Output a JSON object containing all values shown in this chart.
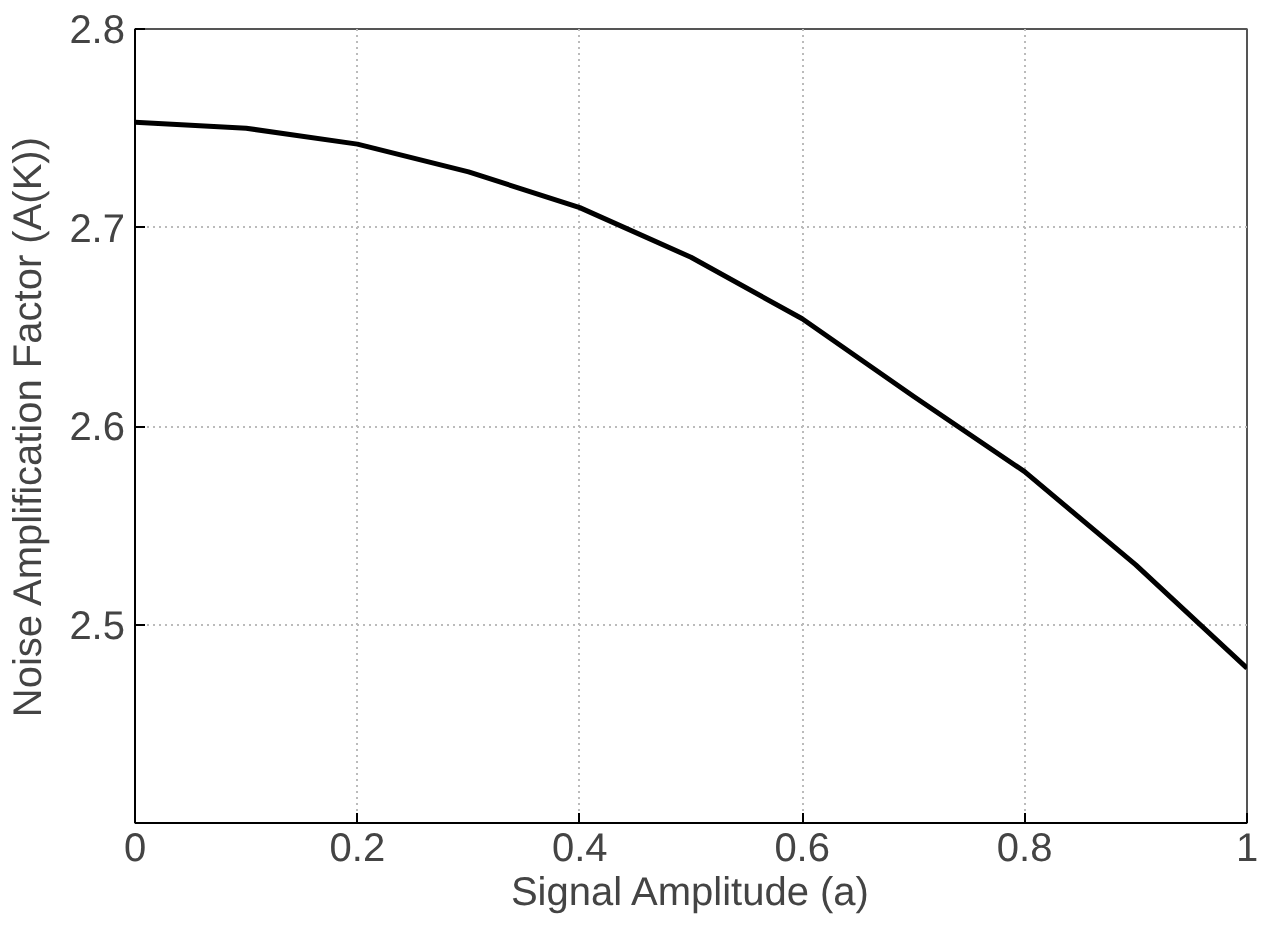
{
  "chart_data": {
    "type": "line",
    "xlabel": "Signal Amplitude (a)",
    "ylabel": "Noise Amplification Factor (A(K))",
    "x": [
      0,
      0.1,
      0.2,
      0.3,
      0.4,
      0.5,
      0.6,
      0.7,
      0.8,
      0.9,
      1.0
    ],
    "series": [
      {
        "color": "#000000",
        "values": [
          2.753,
          2.75,
          2.742,
          2.728,
          2.71,
          2.685,
          2.654,
          2.615,
          2.577,
          2.53,
          2.478
        ]
      }
    ],
    "xlim": [
      0,
      1
    ],
    "ylim": [
      2.4,
      2.8
    ],
    "xticks": [
      0,
      0.2,
      0.4,
      0.6,
      0.8,
      1
    ],
    "yticks": [
      {
        "value": 2.4,
        "label": null
      },
      2.5,
      2.6,
      2.7,
      2.8
    ],
    "grid": true,
    "line_style": "solid"
  }
}
